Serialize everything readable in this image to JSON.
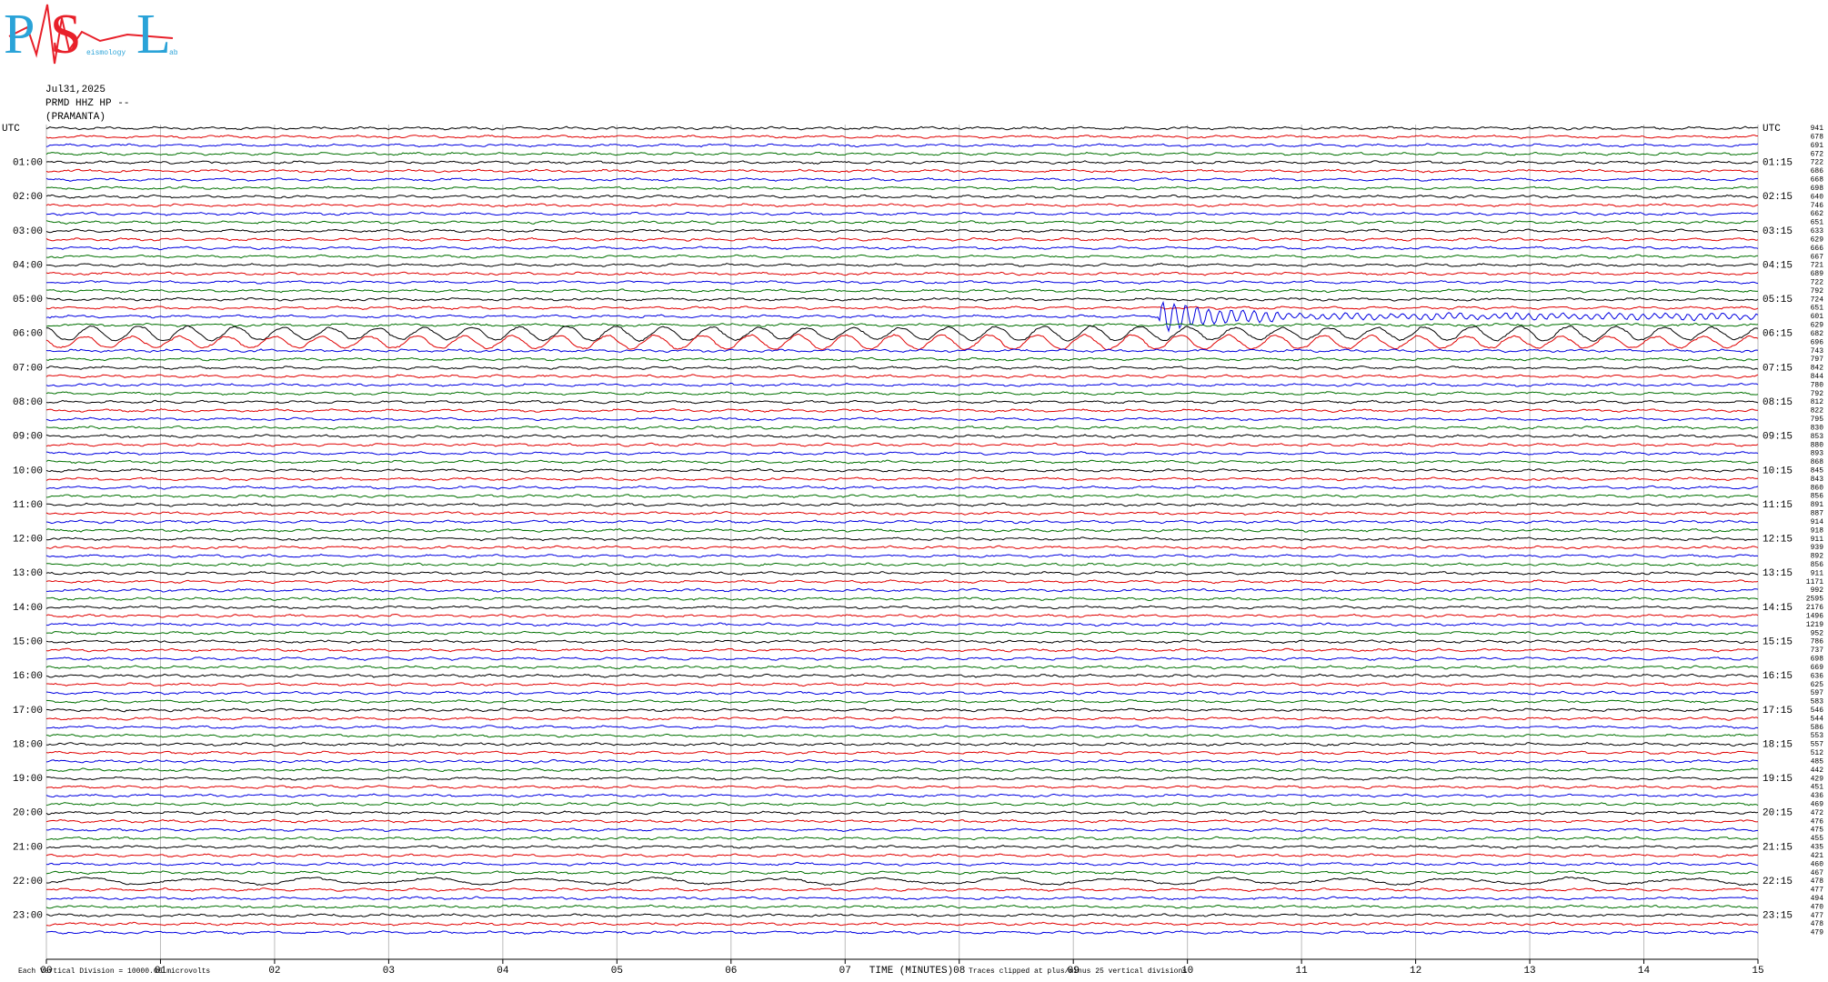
{
  "logo": {
    "letters": [
      "P",
      "S",
      "L"
    ],
    "small": [
      "eismology",
      "ab"
    ]
  },
  "header": {
    "date": "Jul31,2025",
    "station": "PRMD HHZ HP --",
    "name": "(PRAMANTA)"
  },
  "left_labels": [
    "UTC",
    "01:00",
    "02:00",
    "03:00",
    "04:00",
    "05:00",
    "06:00",
    "07:00",
    "08:00",
    "09:00",
    "10:00",
    "11:00",
    "12:00",
    "13:00",
    "14:00",
    "15:00",
    "16:00",
    "17:00",
    "18:00",
    "19:00",
    "20:00",
    "21:00",
    "22:00",
    "23:00"
  ],
  "right_labels": [
    "UTC",
    "01:15",
    "02:15",
    "03:15",
    "04:15",
    "05:15",
    "06:15",
    "07:15",
    "08:15",
    "09:15",
    "10:15",
    "11:15",
    "12:15",
    "13:15",
    "14:15",
    "15:15",
    "16:15",
    "17:15",
    "18:15",
    "19:15",
    "20:15",
    "21:15",
    "22:15",
    "23:15"
  ],
  "trace_values": [
    "941",
    "678",
    "691",
    "672",
    "722",
    "686",
    "668",
    "698",
    "640",
    "746",
    "662",
    "651",
    "633",
    "629",
    "666",
    "667",
    "721",
    "689",
    "722",
    "792",
    "724",
    "651",
    "601",
    "629",
    "682",
    "696",
    "743",
    "797",
    "842",
    "844",
    "780",
    "792",
    "812",
    "822",
    "795",
    "830",
    "853",
    "880",
    "893",
    "868",
    "845",
    "843",
    "860",
    "856",
    "891",
    "887",
    "914",
    "918",
    "911",
    "939",
    "892",
    "856",
    "911",
    "1171",
    "992",
    "2595",
    "2176",
    "1496",
    "1219",
    "952",
    "786",
    "737",
    "698",
    "669",
    "636",
    "625",
    "597",
    "583",
    "546",
    "544",
    "586",
    "553",
    "557",
    "512",
    "485",
    "442",
    "429",
    "451",
    "436",
    "469",
    "472",
    "476",
    "475",
    "455",
    "435",
    "421",
    "460",
    "467",
    "478",
    "477",
    "494",
    "470",
    "477",
    "478",
    "479"
  ],
  "x_ticks": [
    "00",
    "01",
    "02",
    "03",
    "04",
    "05",
    "06",
    "07",
    "08",
    "09",
    "10",
    "11",
    "12",
    "13",
    "14",
    "15"
  ],
  "footer": {
    "division": "Each Vertical Division = 10000.00 microvolts",
    "axis_title": "TIME (MINUTES)",
    "clip_note": "Traces clipped at plus/minus 25 vertical divisions"
  }
}
